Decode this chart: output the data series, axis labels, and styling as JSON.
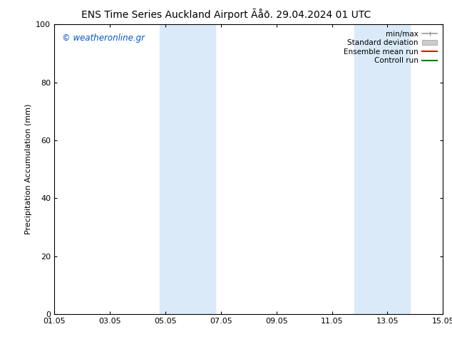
{
  "title_left": "ENS Time Series Auckland Airport",
  "title_right": "Āåō. 29.04.2024 01 UTC",
  "ylabel": "Precipitation Accumulation (mm)",
  "watermark": "© weatheronline.gr",
  "watermark_color": "#0055cc",
  "xlim": [
    0,
    14
  ],
  "ylim": [
    0,
    100
  ],
  "yticks": [
    0,
    20,
    40,
    60,
    80,
    100
  ],
  "xtick_labels": [
    "01.05",
    "03.05",
    "05.05",
    "07.05",
    "09.05",
    "11.05",
    "13.05",
    "15.05"
  ],
  "xtick_positions": [
    0,
    2,
    4,
    6,
    8,
    10,
    12,
    14
  ],
  "shaded_bands": [
    {
      "x_start": 3.8,
      "x_end": 5.8
    },
    {
      "x_start": 10.8,
      "x_end": 12.8
    }
  ],
  "shaded_color": "#daeaf8",
  "background_color": "#ffffff",
  "legend_items": [
    {
      "label": "min/max",
      "color": "#999999",
      "style": "errorbar"
    },
    {
      "label": "Standard deviation",
      "color": "#cccccc",
      "style": "band"
    },
    {
      "label": "Ensemble mean run",
      "color": "#ff0000",
      "style": "line"
    },
    {
      "label": "Controll run",
      "color": "#008000",
      "style": "line"
    }
  ],
  "title_fontsize": 10,
  "axis_fontsize": 8,
  "tick_fontsize": 8,
  "legend_fontsize": 7.5
}
